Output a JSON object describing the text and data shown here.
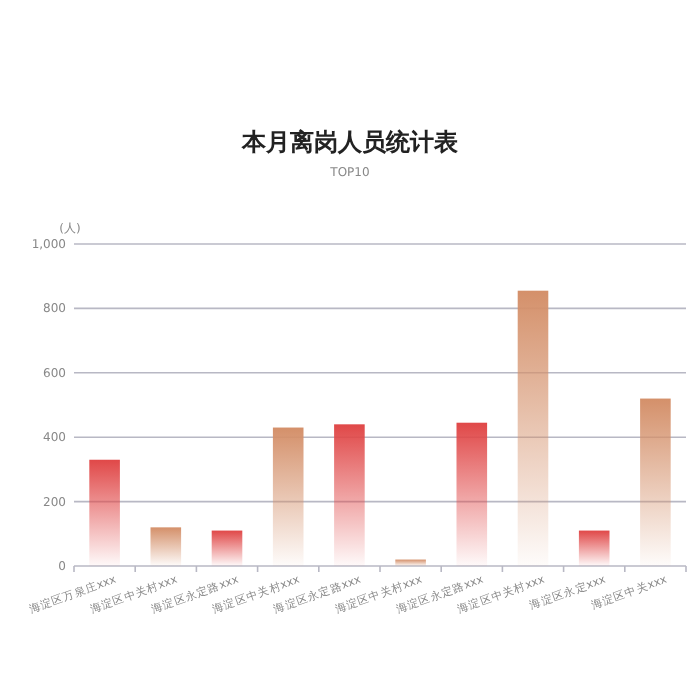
{
  "chart_data": {
    "type": "bar",
    "title": "本月离岗人员统计表",
    "subtitle": "TOP10",
    "ylabel": "(人)",
    "categories": [
      "海淀区万泉庄xxx",
      "海淀区中关村xxx",
      "海淀区永定路xxx",
      "海淀区中关村xxx",
      "海淀区永定路xxx",
      "海淀区中关村xxx",
      "海淀区永定路xxx",
      "海淀区中关村xxx",
      "海淀区永定xxx",
      "海淀区中关xxx"
    ],
    "values": [
      330,
      120,
      110,
      430,
      440,
      20,
      445,
      855,
      110,
      520
    ],
    "colors": [
      "#e04848",
      "#d4906a",
      "#e04848",
      "#d4906a",
      "#e04848",
      "#d4906a",
      "#e04848",
      "#d4906a",
      "#e04848",
      "#d4906a"
    ],
    "ylim": [
      0,
      1000
    ],
    "yticks": [
      0,
      200,
      400,
      600,
      800,
      {
        "value": 1000,
        "label": "1,000"
      }
    ],
    "grid": "y"
  }
}
